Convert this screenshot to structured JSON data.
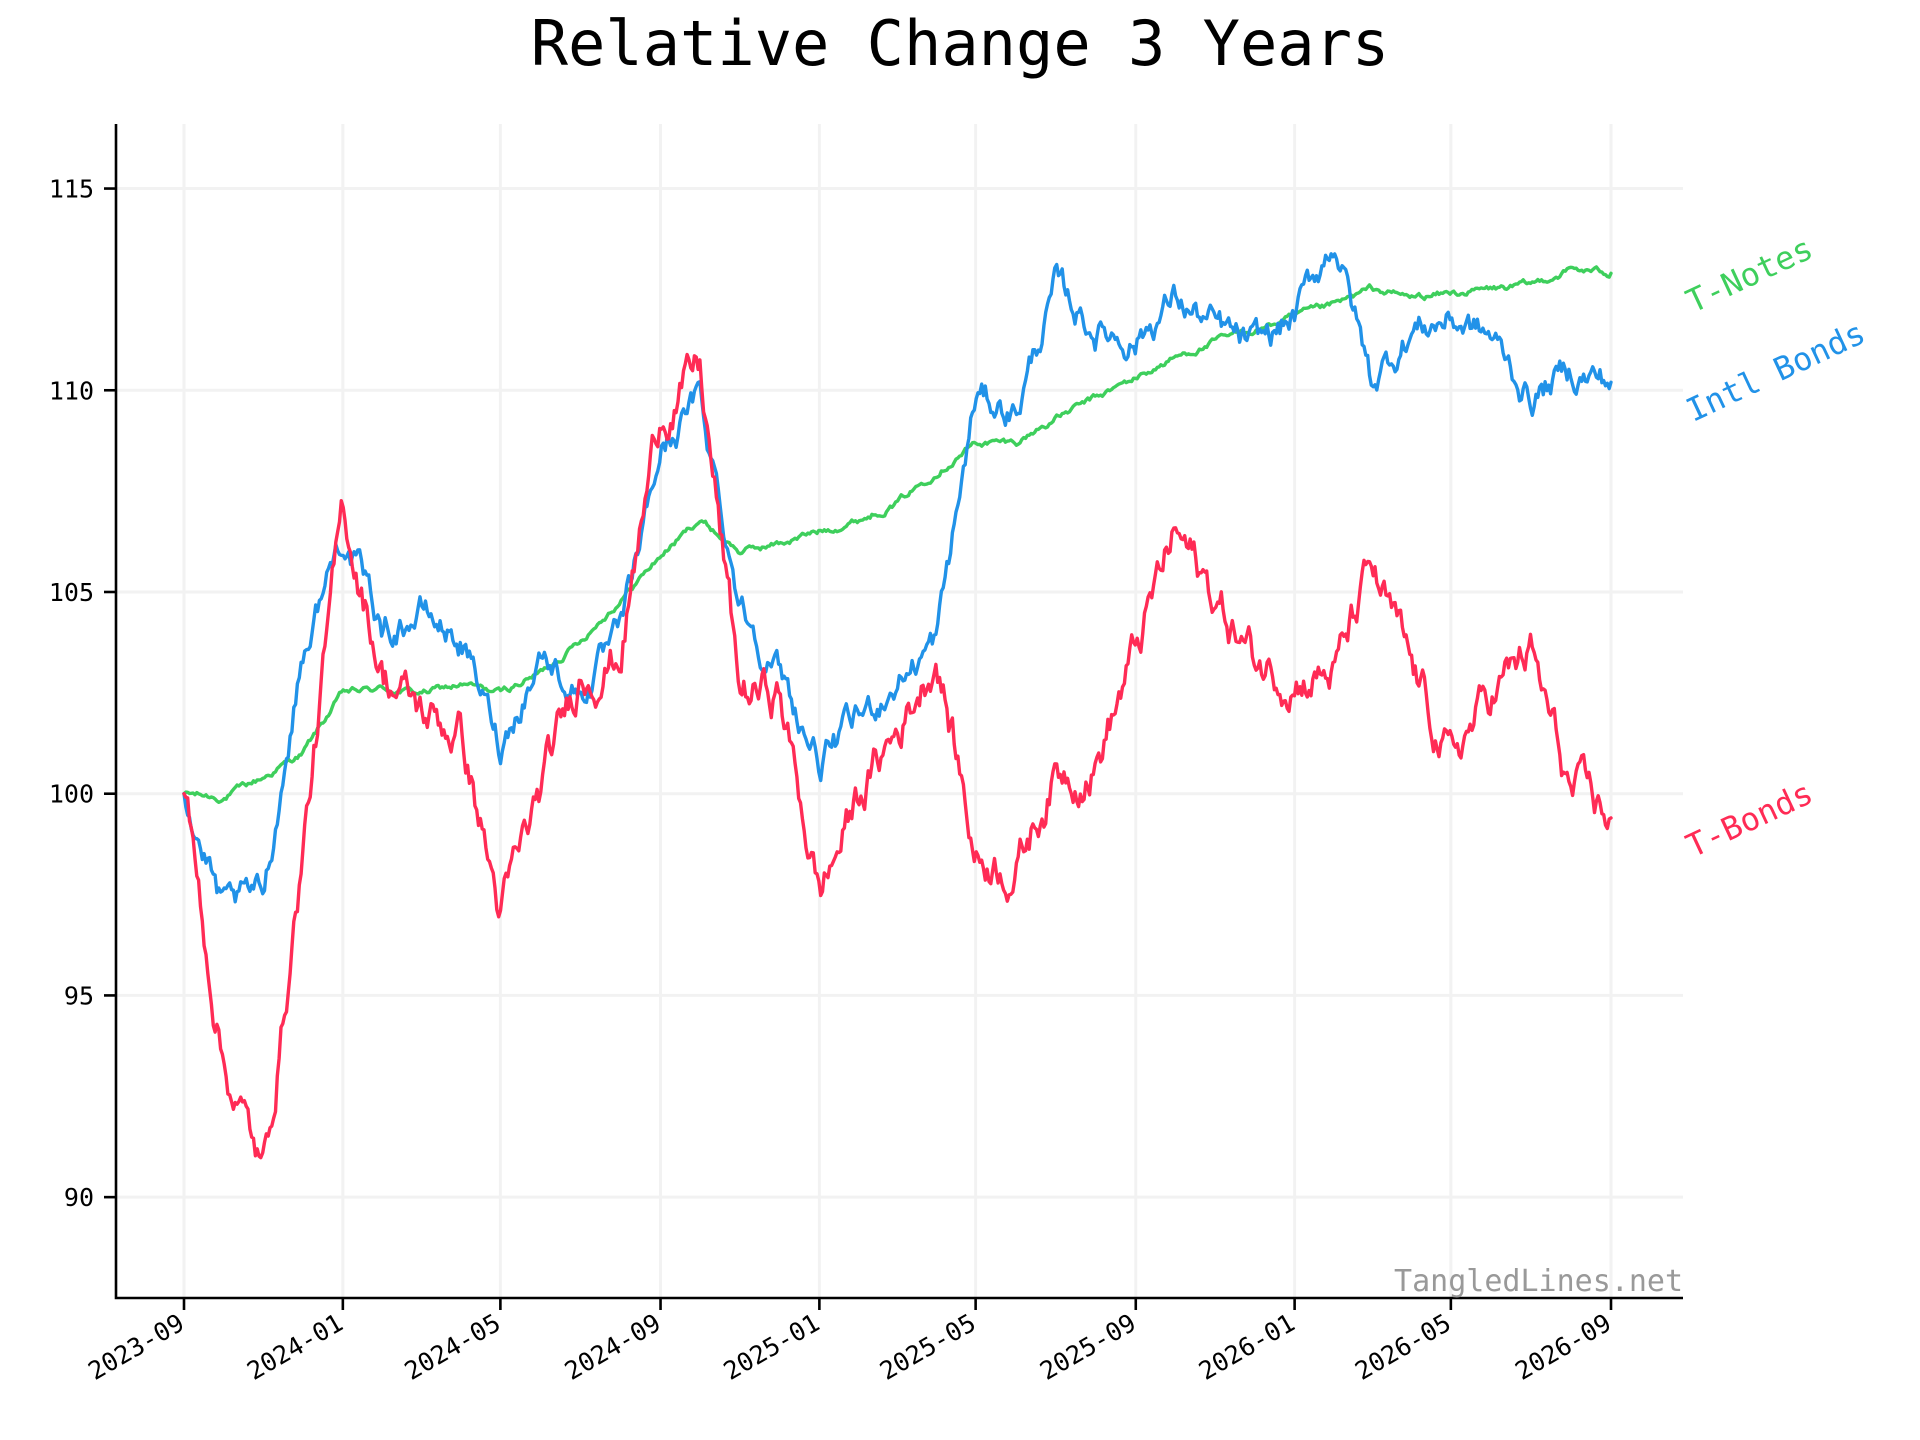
{
  "chart_data": {
    "type": "line",
    "title": "Relative Change 3 Years",
    "xlabel": "",
    "ylabel": "",
    "x_range": [
      "2023-09-01",
      "2026-09-01"
    ],
    "ylim": [
      87.5,
      116.6
    ],
    "y_ticks": [
      90,
      95,
      100,
      105,
      110,
      115
    ],
    "x_ticks": [
      "2023-09",
      "2024-01",
      "2024-05",
      "2024-09",
      "2025-01",
      "2025-05",
      "2025-09",
      "2026-01",
      "2026-05",
      "2026-09"
    ],
    "grid": true,
    "legend": "none",
    "watermark": "TangledLines.net",
    "series": [
      {
        "name": "T-Notes",
        "color": "#3ecf5c",
        "points": [
          [
            "2023-09-01",
            100.0
          ],
          [
            "2023-10-01",
            99.9
          ],
          [
            "2023-11-01",
            100.4
          ],
          [
            "2023-12-01",
            101.0
          ],
          [
            "2024-01-01",
            102.5
          ],
          [
            "2024-02-01",
            102.6
          ],
          [
            "2024-03-01",
            102.5
          ],
          [
            "2024-04-01",
            102.7
          ],
          [
            "2024-05-01",
            102.5
          ],
          [
            "2024-06-01",
            103.0
          ],
          [
            "2024-07-01",
            103.8
          ],
          [
            "2024-08-01",
            104.8
          ],
          [
            "2024-09-01",
            105.9
          ],
          [
            "2024-10-01",
            106.8
          ],
          [
            "2024-11-01",
            106.0
          ],
          [
            "2024-12-01",
            106.2
          ],
          [
            "2025-01-01",
            106.5
          ],
          [
            "2025-02-01",
            106.8
          ],
          [
            "2025-03-01",
            107.2
          ],
          [
            "2025-04-01",
            108.0
          ],
          [
            "2025-05-01",
            108.7
          ],
          [
            "2025-06-01",
            108.7
          ],
          [
            "2025-07-01",
            109.3
          ],
          [
            "2025-08-01",
            109.8
          ],
          [
            "2025-09-01",
            110.3
          ],
          [
            "2025-10-01",
            110.8
          ],
          [
            "2025-11-01",
            111.2
          ],
          [
            "2025-12-01",
            111.5
          ],
          [
            "2026-01-01",
            111.8
          ],
          [
            "2026-02-01",
            112.1
          ],
          [
            "2026-03-01",
            112.5
          ],
          [
            "2026-04-01",
            112.3
          ],
          [
            "2026-05-01",
            112.4
          ],
          [
            "2026-06-01",
            112.5
          ],
          [
            "2026-07-01",
            112.6
          ],
          [
            "2026-08-01",
            113.0
          ],
          [
            "2026-09-01",
            112.9
          ]
        ]
      },
      {
        "name": "Intl Bonds",
        "color": "#2192e8",
        "points": [
          [
            "2023-09-01",
            100.0
          ],
          [
            "2023-10-01",
            97.0
          ],
          [
            "2023-11-01",
            97.5
          ],
          [
            "2023-12-01",
            103.5
          ],
          [
            "2024-01-01",
            106.5
          ],
          [
            "2024-02-01",
            104.0
          ],
          [
            "2024-03-01",
            104.5
          ],
          [
            "2024-04-01",
            103.8
          ],
          [
            "2024-05-01",
            101.2
          ],
          [
            "2024-06-01",
            103.5
          ],
          [
            "2024-07-01",
            102.5
          ],
          [
            "2024-08-01",
            103.8
          ],
          [
            "2024-09-01",
            108.5
          ],
          [
            "2024-10-01",
            109.8
          ],
          [
            "2024-11-01",
            104.8
          ],
          [
            "2024-12-01",
            103.0
          ],
          [
            "2025-01-01",
            100.8
          ],
          [
            "2025-02-01",
            101.8
          ],
          [
            "2025-03-01",
            102.8
          ],
          [
            "2025-04-01",
            103.8
          ],
          [
            "2025-05-01",
            109.8
          ],
          [
            "2025-06-01",
            109.5
          ],
          [
            "2025-07-01",
            112.5
          ],
          [
            "2025-08-01",
            111.5
          ],
          [
            "2025-09-01",
            111.3
          ],
          [
            "2025-10-01",
            112.3
          ],
          [
            "2025-11-01",
            111.5
          ],
          [
            "2025-12-01",
            111.0
          ],
          [
            "2026-01-01",
            111.8
          ],
          [
            "2026-02-01",
            113.8
          ],
          [
            "2026-03-01",
            110.2
          ],
          [
            "2026-04-01",
            111.5
          ],
          [
            "2026-05-01",
            111.8
          ],
          [
            "2026-06-01",
            111.3
          ],
          [
            "2026-07-01",
            109.8
          ],
          [
            "2026-08-01",
            110.5
          ],
          [
            "2026-09-01",
            110.2
          ]
        ]
      },
      {
        "name": "T-Bonds",
        "color": "#ff2b55",
        "points": [
          [
            "2023-09-01",
            100.0
          ],
          [
            "2023-10-01",
            93.5
          ],
          [
            "2023-11-01",
            90.5
          ],
          [
            "2023-12-01",
            98.5
          ],
          [
            "2024-01-01",
            107.0
          ],
          [
            "2024-02-01",
            103.0
          ],
          [
            "2024-03-01",
            102.0
          ],
          [
            "2024-04-01",
            101.5
          ],
          [
            "2024-05-01",
            97.0
          ],
          [
            "2024-06-01",
            100.0
          ],
          [
            "2024-07-01",
            103.0
          ],
          [
            "2024-08-01",
            103.5
          ],
          [
            "2024-09-01",
            109.5
          ],
          [
            "2024-10-01",
            110.5
          ],
          [
            "2024-11-01",
            102.5
          ],
          [
            "2024-12-01",
            102.5
          ],
          [
            "2025-01-01",
            97.5
          ],
          [
            "2025-02-01",
            100.0
          ],
          [
            "2025-03-01",
            101.5
          ],
          [
            "2025-04-01",
            103.5
          ],
          [
            "2025-05-01",
            98.5
          ],
          [
            "2025-06-01",
            98.2
          ],
          [
            "2025-07-01",
            100.5
          ],
          [
            "2025-08-01",
            100.8
          ],
          [
            "2025-09-01",
            103.5
          ],
          [
            "2025-10-01",
            106.5
          ],
          [
            "2025-11-01",
            104.8
          ],
          [
            "2025-12-01",
            103.3
          ],
          [
            "2026-01-01",
            103.0
          ],
          [
            "2026-02-01",
            103.0
          ],
          [
            "2026-03-01",
            105.5
          ],
          [
            "2026-04-01",
            103.0
          ],
          [
            "2026-05-01",
            100.8
          ],
          [
            "2026-06-01",
            102.5
          ],
          [
            "2026-07-01",
            103.5
          ],
          [
            "2026-08-01",
            100.0
          ],
          [
            "2026-09-01",
            99.4
          ]
        ]
      }
    ]
  }
}
